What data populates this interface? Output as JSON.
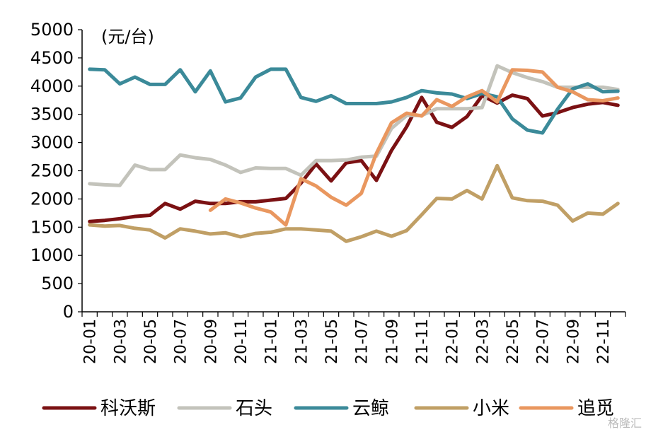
{
  "chart_data": {
    "type": "line",
    "unit_label": "(元/台)",
    "ylim": [
      0,
      5000
    ],
    "yticks": [
      0,
      500,
      1000,
      1500,
      2000,
      2500,
      3000,
      3500,
      4000,
      4500,
      5000
    ],
    "x": [
      "20-01",
      "20-02",
      "20-03",
      "20-04",
      "20-05",
      "20-06",
      "20-07",
      "20-08",
      "20-09",
      "20-10",
      "20-11",
      "20-12",
      "21-01",
      "21-02",
      "21-03",
      "21-04",
      "21-05",
      "21-06",
      "21-07",
      "21-08",
      "21-09",
      "21-10",
      "21-11",
      "21-12",
      "22-01",
      "22-02",
      "22-03",
      "22-04",
      "22-05",
      "22-06",
      "22-07",
      "22-08",
      "22-09",
      "22-10",
      "22-11",
      "22-12"
    ],
    "xtick_labels": [
      "20-01",
      "20-03",
      "20-05",
      "20-07",
      "20-09",
      "20-11",
      "21-01",
      "21-03",
      "21-05",
      "21-07",
      "21-09",
      "21-11",
      "22-01",
      "22-03",
      "22-05",
      "22-07",
      "22-09",
      "22-11"
    ],
    "grid": false,
    "legend_position": "bottom",
    "series": [
      {
        "name": "科沃斯",
        "color": "#7b1113",
        "values": [
          1600,
          1620,
          1650,
          1690,
          1710,
          1920,
          1820,
          1960,
          1920,
          1920,
          1950,
          1950,
          1980,
          2010,
          2280,
          2620,
          2320,
          2640,
          2680,
          2330,
          2860,
          3280,
          3800,
          3360,
          3270,
          3460,
          3830,
          3700,
          3840,
          3780,
          3470,
          3530,
          3620,
          3680,
          3710,
          3660
        ]
      },
      {
        "name": "石头",
        "color": "#c3c3bb",
        "values": [
          2270,
          2250,
          2240,
          2600,
          2520,
          2520,
          2780,
          2730,
          2700,
          2600,
          2470,
          2550,
          2540,
          2540,
          2420,
          2680,
          2680,
          2690,
          2740,
          2760,
          3250,
          3480,
          3480,
          3600,
          3600,
          3600,
          3620,
          4360,
          4240,
          4150,
          4080,
          3980,
          3980,
          3980,
          3980,
          3940
        ]
      },
      {
        "name": "云鲸",
        "color": "#3b8a99",
        "values": [
          4300,
          4290,
          4040,
          4160,
          4030,
          4030,
          4290,
          3900,
          4270,
          3720,
          3790,
          4160,
          4300,
          4300,
          3800,
          3730,
          3830,
          3690,
          3690,
          3690,
          3720,
          3800,
          3920,
          3880,
          3860,
          3780,
          3870,
          3810,
          3420,
          3220,
          3170,
          3590,
          3950,
          4040,
          3900,
          3910
        ]
      },
      {
        "name": "小米",
        "color": "#c09f65",
        "values": [
          1540,
          1520,
          1530,
          1480,
          1450,
          1310,
          1470,
          1430,
          1380,
          1400,
          1330,
          1390,
          1410,
          1470,
          1470,
          1450,
          1430,
          1250,
          1330,
          1430,
          1340,
          1440,
          1720,
          2010,
          2000,
          2150,
          2000,
          2590,
          2020,
          1970,
          1960,
          1890,
          1610,
          1750,
          1730,
          1920
        ]
      },
      {
        "name": "追觅",
        "color": "#e9975f",
        "values": [
          null,
          null,
          null,
          null,
          null,
          null,
          null,
          null,
          1800,
          2000,
          1930,
          1840,
          1770,
          1540,
          2360,
          2230,
          2030,
          1890,
          2100,
          2810,
          3350,
          3520,
          3470,
          3760,
          3640,
          3810,
          3920,
          3720,
          4290,
          4280,
          4250,
          3980,
          3900,
          3760,
          3740,
          3790
        ]
      }
    ]
  },
  "watermark": "格隆汇"
}
